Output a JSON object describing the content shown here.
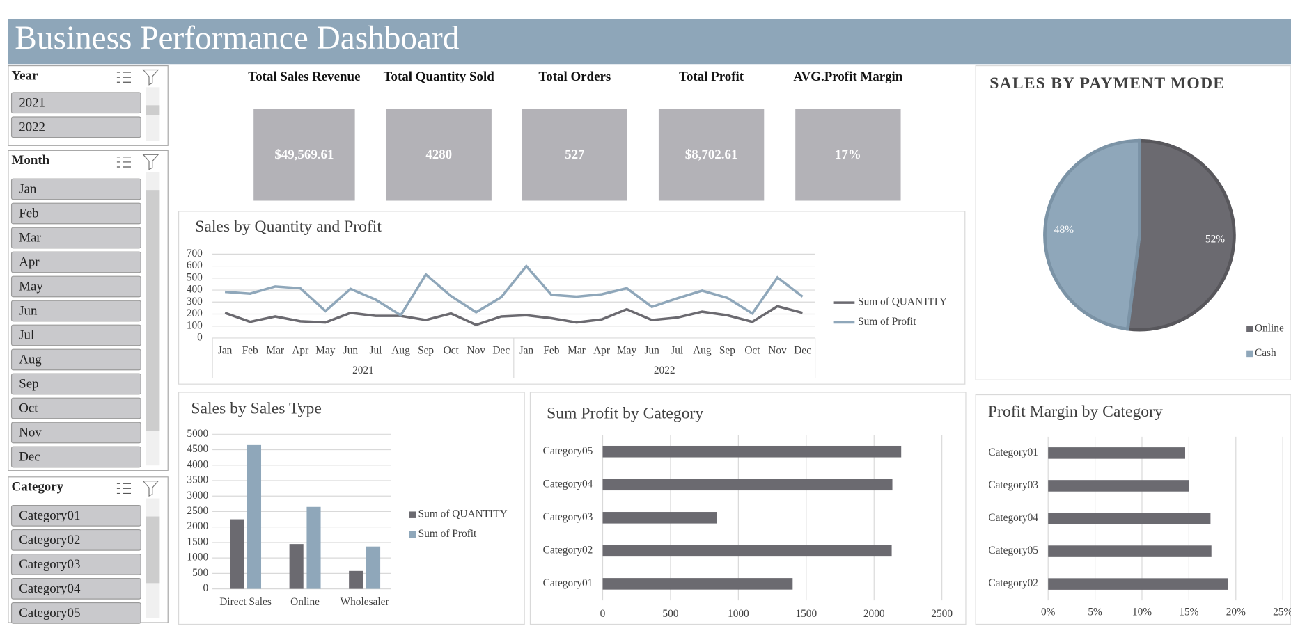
{
  "header": {
    "title": "Business Performance Dashboard"
  },
  "slicers": [
    {
      "title": "Year",
      "items": [
        "2021",
        "2022"
      ]
    },
    {
      "title": "Month",
      "items": [
        "Jan",
        "Feb",
        "Mar",
        "Apr",
        "May",
        "Jun",
        "Jul",
        "Aug",
        "Sep",
        "Oct",
        "Nov",
        "Dec"
      ]
    },
    {
      "title": "Category",
      "items": [
        "Category01",
        "Category02",
        "Category03",
        "Category04",
        "Category05"
      ]
    }
  ],
  "kpis": [
    {
      "label": "Total Sales Revenue",
      "value": "$49,569.61"
    },
    {
      "label": "Total Quantity Sold",
      "value": "4280"
    },
    {
      "label": "Total Orders",
      "value": "527"
    },
    {
      "label": "Total Profit",
      "value": "$8,702.61"
    },
    {
      "label": "AVG.Profit Margin",
      "value": "17%"
    }
  ],
  "chart_data": [
    {
      "type": "line",
      "title": "Sales by Quantity and Profit",
      "categories": [
        "Jan",
        "Feb",
        "Mar",
        "Apr",
        "May",
        "Jun",
        "Jul",
        "Aug",
        "Sep",
        "Oct",
        "Nov",
        "Dec",
        "Jan",
        "Feb",
        "Mar",
        "Apr",
        "May",
        "Jun",
        "Jul",
        "Aug",
        "Sep",
        "Oct",
        "Nov",
        "Dec"
      ],
      "groups": [
        "2021",
        "2022"
      ],
      "series": [
        {
          "name": "Sum of QUANTITY",
          "color": "#6b6a70",
          "values": [
            210,
            135,
            180,
            140,
            130,
            210,
            185,
            185,
            150,
            205,
            110,
            180,
            190,
            165,
            130,
            155,
            240,
            150,
            170,
            220,
            190,
            135,
            265,
            210
          ]
        },
        {
          "name": "Sum of Profit",
          "color": "#8fa7ba",
          "values": [
            385,
            370,
            430,
            415,
            225,
            410,
            320,
            190,
            530,
            350,
            215,
            340,
            600,
            360,
            345,
            365,
            415,
            260,
            330,
            395,
            335,
            205,
            505,
            345
          ]
        }
      ],
      "ylim": [
        0,
        700
      ],
      "yticks": [
        0,
        100,
        200,
        300,
        400,
        500,
        600,
        700
      ],
      "grid": true,
      "legend": "right"
    },
    {
      "type": "bar",
      "title": "Sales by Sales Type",
      "categories": [
        "Direct Sales",
        "Online",
        "Wholesaler"
      ],
      "series": [
        {
          "name": "Sum of QUANTITY",
          "color": "#6b6a70",
          "values": [
            2250,
            1450,
            580
          ]
        },
        {
          "name": "Sum of Profit",
          "color": "#8fa7ba",
          "values": [
            4650,
            2650,
            1370
          ]
        }
      ],
      "ylim": [
        0,
        5000
      ],
      "yticks": [
        0,
        500,
        1000,
        1500,
        2000,
        2500,
        3000,
        3500,
        4000,
        4500,
        5000
      ],
      "grid": true,
      "legend": "right"
    },
    {
      "type": "hbar",
      "title": "Sum Profit by Category",
      "categories": [
        "Category05",
        "Category04",
        "Category03",
        "Category02",
        "Category01"
      ],
      "values": [
        2200,
        2135,
        840,
        2130,
        1400
      ],
      "color": "#6b6a70",
      "xlim": [
        0,
        2500
      ],
      "xticks": [
        0,
        500,
        1000,
        1500,
        2000,
        2500
      ],
      "grid": true
    },
    {
      "type": "pie",
      "title": "SALES BY PAYMENT MODE",
      "categories": [
        "Online",
        "Cash"
      ],
      "values": [
        52,
        48
      ],
      "value_labels": [
        "52%",
        "48%"
      ],
      "colors": [
        "#6b6a70",
        "#8fa7ba"
      ],
      "legend": "bottom-right"
    },
    {
      "type": "hbar",
      "title": "Profit Margin by Category",
      "categories": [
        "Category01",
        "Category03",
        "Category04",
        "Category05",
        "Category02"
      ],
      "values": [
        14.6,
        15.0,
        17.3,
        17.4,
        19.2
      ],
      "color": "#6b6a70",
      "xlim": [
        0,
        25
      ],
      "xticks": [
        {
          "value": 0,
          "label": "0%"
        },
        {
          "value": 5,
          "label": "5%"
        },
        {
          "value": 10,
          "label": "10%"
        },
        {
          "value": 15,
          "label": "15%"
        },
        {
          "value": 20,
          "label": "20%"
        },
        {
          "value": 25,
          "label": "25%"
        }
      ],
      "grid": true
    }
  ]
}
